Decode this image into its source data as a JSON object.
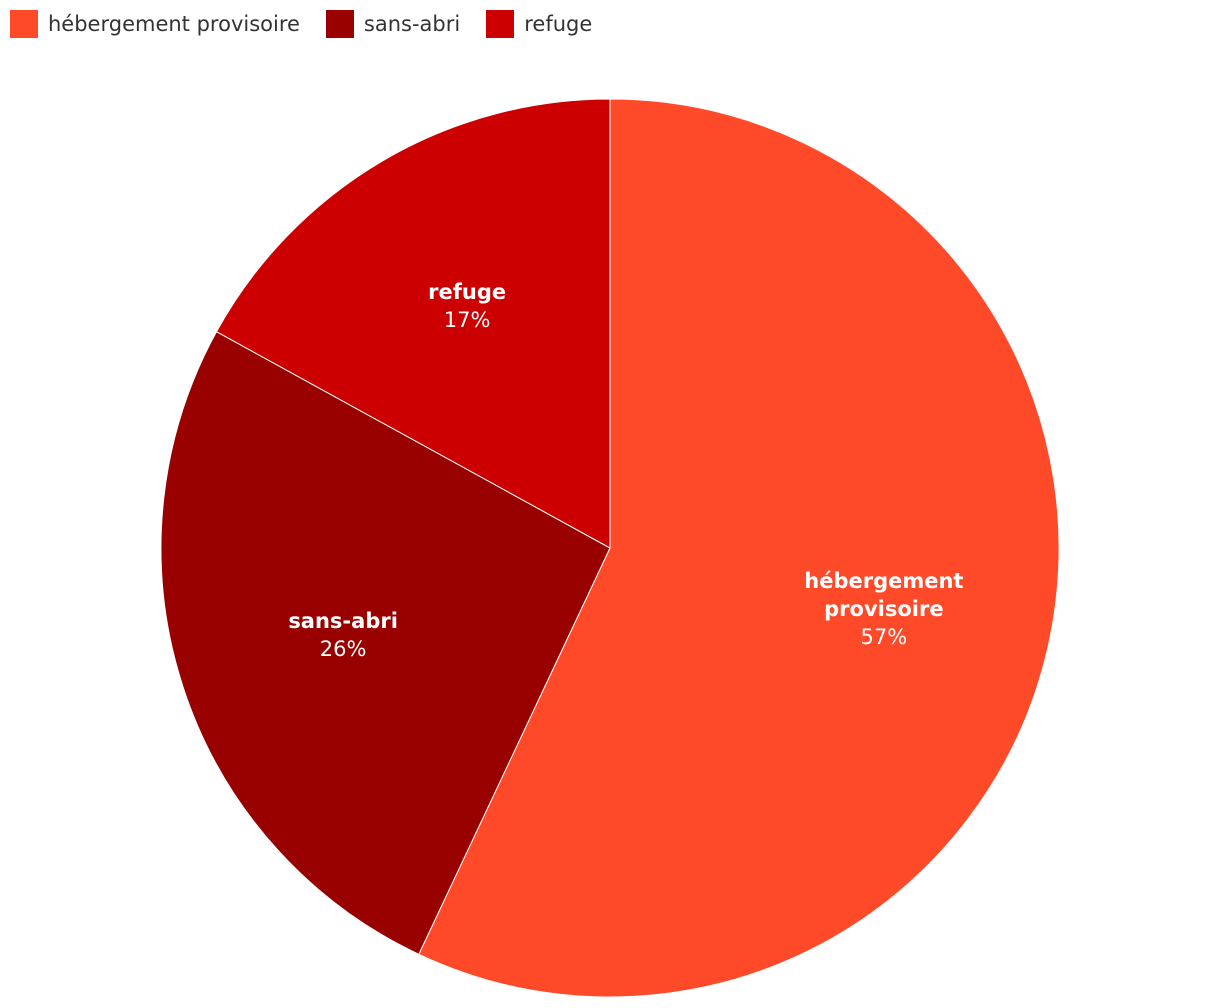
{
  "chart_data": {
    "type": "pie",
    "categories": [
      "hébergement provisoire",
      "sans-abri",
      "refuge"
    ],
    "values": [
      57,
      26,
      17
    ],
    "value_labels": [
      "57%",
      "26%",
      "17%"
    ],
    "colors": [
      "#ff4a2a",
      "#990000",
      "#cc0000"
    ],
    "legend": "top-left"
  }
}
